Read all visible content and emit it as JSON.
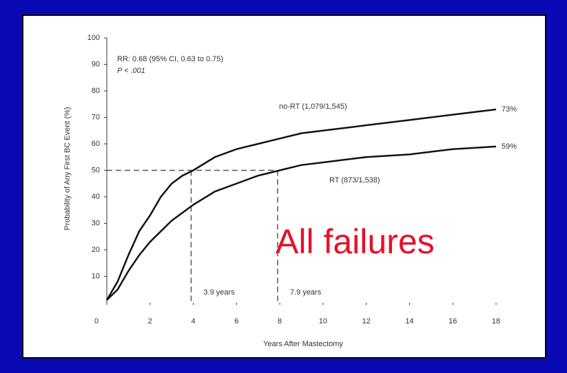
{
  "chart_data": {
    "type": "line",
    "annotation": "All failures",
    "xlabel": "Years After Mastectomy",
    "ylabel": "Probability of Any First BC Event (%)",
    "stats": [
      "RR: 0.68 (95% CI, 0.63 to 0.75)",
      "P < .001"
    ],
    "x": [
      0,
      0.5,
      1,
      1.5,
      2,
      2.5,
      3,
      3.5,
      4,
      5,
      6,
      7,
      8,
      9,
      10,
      12,
      14,
      16,
      18
    ],
    "series": [
      {
        "name": "no-RT (1,079/1,545)",
        "color": "#111111",
        "end_label": "73%",
        "values": [
          1,
          8,
          18,
          27,
          33,
          40,
          45,
          48,
          50,
          55,
          58,
          60,
          62,
          64,
          65,
          67,
          69,
          71,
          73
        ]
      },
      {
        "name": "RT (873/1,538)",
        "color": "#111111",
        "end_label": "59%",
        "values": [
          1,
          5,
          12,
          18,
          23,
          27,
          31,
          34,
          37,
          42,
          45,
          48,
          50,
          52,
          53,
          55,
          56,
          58,
          59
        ]
      }
    ],
    "reference_y": 50,
    "medians": [
      {
        "x": 3.9,
        "label": "3.9 years"
      },
      {
        "x": 7.9,
        "label": "7.9 years"
      }
    ],
    "xlim": [
      0,
      18
    ],
    "xticks": [
      0,
      2,
      4,
      6,
      8,
      10,
      12,
      14,
      16,
      18
    ],
    "ylim": [
      0,
      100
    ],
    "yticks": [
      10,
      20,
      30,
      40,
      50,
      60,
      70,
      80,
      90,
      100
    ]
  }
}
